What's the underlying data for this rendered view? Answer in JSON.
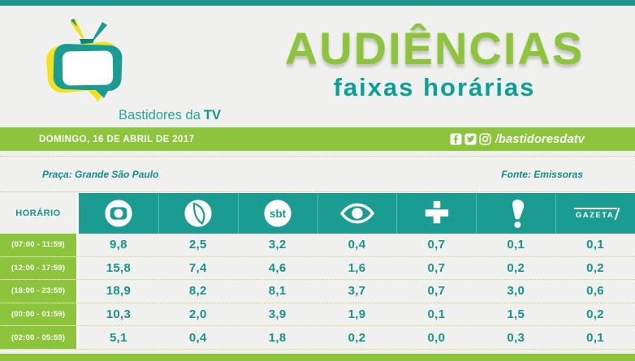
{
  "brand": {
    "name_prefix": "Bastidores da",
    "name_suffix": "TV"
  },
  "title": {
    "main": "AUDIÊNCIAS",
    "subtitle": "faixas horárias"
  },
  "date_bar": {
    "date": "DOMINGO, 16 DE ABRIL DE 2017",
    "social_handle": "/bastidoresdatv",
    "social_icons": [
      "facebook-icon",
      "twitter-icon",
      "instagram-icon"
    ]
  },
  "meta": {
    "praca": "Praça: Grande São Paulo",
    "fonte": "Fonte: Emissoras"
  },
  "table": {
    "horario_label": "HORÁRIO",
    "networks": [
      "Globo",
      "RecordTV",
      "SBT",
      "Band",
      "TV Cultura",
      "RedeTV!",
      "TV Gazeta"
    ],
    "gazeta_wordmark": "GAZETA",
    "rows": [
      {
        "time": "(07:00 - 11:59)",
        "values": [
          "9,8",
          "2,5",
          "3,2",
          "0,4",
          "0,7",
          "0,1",
          "0,1"
        ]
      },
      {
        "time": "(12:00 - 17:59)",
        "values": [
          "15,8",
          "7,4",
          "4,6",
          "1,6",
          "0,7",
          "0,2",
          "0,2"
        ]
      },
      {
        "time": "(18:00 - 23:59)",
        "values": [
          "18,9",
          "8,2",
          "8,1",
          "3,7",
          "0,7",
          "3,0",
          "0,6"
        ]
      },
      {
        "time": "(00:00 - 01:59)",
        "values": [
          "10,3",
          "2,0",
          "3,9",
          "1,9",
          "0,1",
          "1,5",
          "0,2"
        ]
      },
      {
        "time": "(02:00 - 05:59)",
        "values": [
          "5,1",
          "0,4",
          "1,8",
          "0,2",
          "0,0",
          "0,3",
          "0,1"
        ]
      }
    ]
  },
  "chart_data": {
    "type": "table",
    "title": "AUDIÊNCIAS faixas horárias",
    "date": "DOMINGO, 16 DE ABRIL DE 2017",
    "market": "Grande São Paulo",
    "source": "Emissoras",
    "categories": [
      "(07:00 - 11:59)",
      "(12:00 - 17:59)",
      "(18:00 - 23:59)",
      "(00:00 - 01:59)",
      "(02:00 - 05:59)"
    ],
    "series": [
      {
        "name": "Globo",
        "values": [
          9.8,
          15.8,
          18.9,
          10.3,
          5.1
        ]
      },
      {
        "name": "RecordTV",
        "values": [
          2.5,
          7.4,
          8.2,
          2.0,
          0.4
        ]
      },
      {
        "name": "SBT",
        "values": [
          3.2,
          4.6,
          8.1,
          3.9,
          1.8
        ]
      },
      {
        "name": "Band",
        "values": [
          0.4,
          1.6,
          3.7,
          1.9,
          0.2
        ]
      },
      {
        "name": "TV Cultura",
        "values": [
          0.7,
          0.7,
          0.7,
          0.1,
          0.0
        ]
      },
      {
        "name": "RedeTV!",
        "values": [
          0.1,
          0.2,
          3.0,
          1.5,
          0.3
        ]
      },
      {
        "name": "TV Gazeta",
        "values": [
          0.1,
          0.2,
          0.6,
          0.2,
          0.1
        ]
      }
    ]
  },
  "colors": {
    "green": "#8CC43C",
    "teal": "#1A9C93",
    "teal_text": "#17948B",
    "yellow": "#F3E11C",
    "background": "#F0F0EE"
  }
}
